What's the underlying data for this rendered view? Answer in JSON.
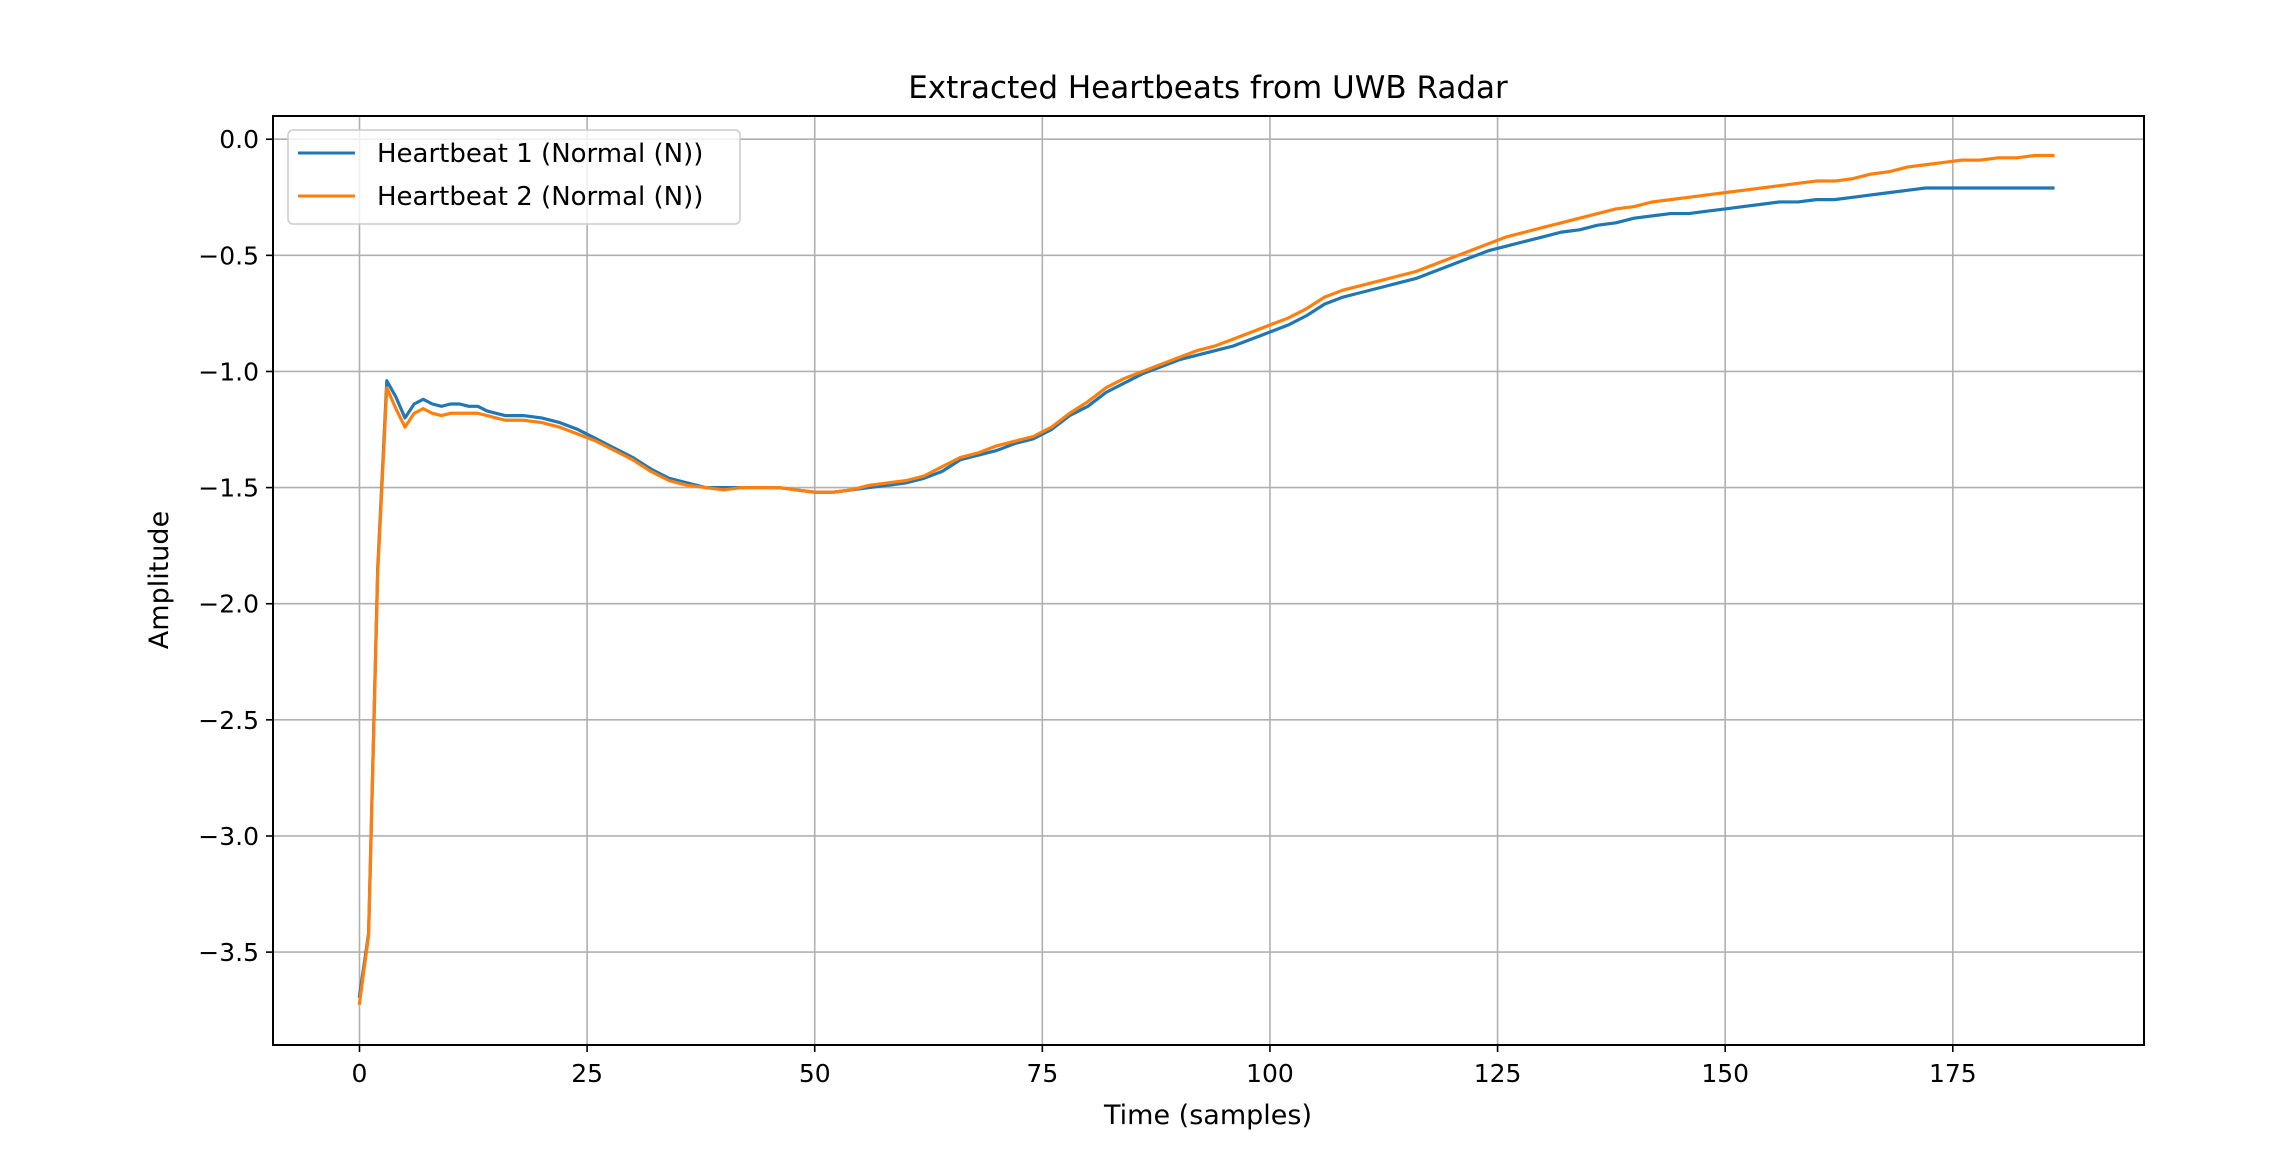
{
  "chart_data": {
    "type": "line",
    "title": "Extracted Heartbeats from UWB Radar",
    "xlabel": "Time (samples)",
    "ylabel": "Amplitude",
    "xlim": [
      -9.5,
      196
    ],
    "ylim": [
      -3.9,
      0.1
    ],
    "xticks": [
      0,
      25,
      50,
      75,
      100,
      125,
      150,
      175
    ],
    "xtick_labels": [
      "0",
      "25",
      "50",
      "75",
      "100",
      "125",
      "150",
      "175"
    ],
    "yticks": [
      0.0,
      -0.5,
      -1.0,
      -1.5,
      -2.0,
      -2.5,
      -3.0,
      -3.5
    ],
    "ytick_labels": [
      "0.0",
      "−0.5",
      "−1.0",
      "−1.5",
      "−2.0",
      "−2.5",
      "−3.0",
      "−3.5"
    ],
    "grid": true,
    "legend_position": "top-left",
    "series": [
      {
        "name": "Heartbeat 1 (Normal (N))",
        "color": "#1f77b4",
        "points": [
          [
            0,
            -3.69
          ],
          [
            1,
            -3.42
          ],
          [
            2,
            -1.85
          ],
          [
            3,
            -1.04
          ],
          [
            4,
            -1.11
          ],
          [
            5,
            -1.2
          ],
          [
            6,
            -1.14
          ],
          [
            7,
            -1.12
          ],
          [
            8,
            -1.14
          ],
          [
            9,
            -1.15
          ],
          [
            10,
            -1.14
          ],
          [
            11,
            -1.14
          ],
          [
            12,
            -1.15
          ],
          [
            13,
            -1.15
          ],
          [
            14,
            -1.17
          ],
          [
            15,
            -1.18
          ],
          [
            16,
            -1.19
          ],
          [
            18,
            -1.19
          ],
          [
            20,
            -1.2
          ],
          [
            22,
            -1.22
          ],
          [
            24,
            -1.25
          ],
          [
            26,
            -1.29
          ],
          [
            28,
            -1.33
          ],
          [
            30,
            -1.37
          ],
          [
            32,
            -1.42
          ],
          [
            34,
            -1.46
          ],
          [
            36,
            -1.48
          ],
          [
            38,
            -1.5
          ],
          [
            40,
            -1.5
          ],
          [
            42,
            -1.5
          ],
          [
            44,
            -1.5
          ],
          [
            46,
            -1.5
          ],
          [
            48,
            -1.51
          ],
          [
            50,
            -1.52
          ],
          [
            52,
            -1.52
          ],
          [
            54,
            -1.51
          ],
          [
            56,
            -1.5
          ],
          [
            58,
            -1.49
          ],
          [
            60,
            -1.48
          ],
          [
            62,
            -1.46
          ],
          [
            64,
            -1.43
          ],
          [
            66,
            -1.38
          ],
          [
            68,
            -1.36
          ],
          [
            70,
            -1.34
          ],
          [
            72,
            -1.31
          ],
          [
            74,
            -1.29
          ],
          [
            76,
            -1.25
          ],
          [
            78,
            -1.19
          ],
          [
            80,
            -1.15
          ],
          [
            82,
            -1.09
          ],
          [
            84,
            -1.05
          ],
          [
            86,
            -1.01
          ],
          [
            88,
            -0.98
          ],
          [
            90,
            -0.95
          ],
          [
            92,
            -0.93
          ],
          [
            94,
            -0.91
          ],
          [
            96,
            -0.89
          ],
          [
            98,
            -0.86
          ],
          [
            100,
            -0.83
          ],
          [
            102,
            -0.8
          ],
          [
            104,
            -0.76
          ],
          [
            106,
            -0.71
          ],
          [
            108,
            -0.68
          ],
          [
            110,
            -0.66
          ],
          [
            112,
            -0.64
          ],
          [
            114,
            -0.62
          ],
          [
            116,
            -0.6
          ],
          [
            118,
            -0.57
          ],
          [
            120,
            -0.54
          ],
          [
            122,
            -0.51
          ],
          [
            124,
            -0.48
          ],
          [
            126,
            -0.46
          ],
          [
            128,
            -0.44
          ],
          [
            130,
            -0.42
          ],
          [
            132,
            -0.4
          ],
          [
            134,
            -0.39
          ],
          [
            136,
            -0.37
          ],
          [
            138,
            -0.36
          ],
          [
            140,
            -0.34
          ],
          [
            142,
            -0.33
          ],
          [
            144,
            -0.32
          ],
          [
            146,
            -0.32
          ],
          [
            148,
            -0.31
          ],
          [
            150,
            -0.3
          ],
          [
            152,
            -0.29
          ],
          [
            154,
            -0.28
          ],
          [
            156,
            -0.27
          ],
          [
            158,
            -0.27
          ],
          [
            160,
            -0.26
          ],
          [
            162,
            -0.26
          ],
          [
            164,
            -0.25
          ],
          [
            166,
            -0.24
          ],
          [
            168,
            -0.23
          ],
          [
            170,
            -0.22
          ],
          [
            172,
            -0.21
          ],
          [
            174,
            -0.21
          ],
          [
            176,
            -0.21
          ],
          [
            178,
            -0.21
          ],
          [
            180,
            -0.21
          ],
          [
            182,
            -0.21
          ],
          [
            184,
            -0.21
          ],
          [
            186,
            -0.21
          ]
        ]
      },
      {
        "name": "Heartbeat 2 (Normal (N))",
        "color": "#ff7f0e",
        "points": [
          [
            0,
            -3.72
          ],
          [
            1,
            -3.43
          ],
          [
            2,
            -1.87
          ],
          [
            3,
            -1.07
          ],
          [
            4,
            -1.16
          ],
          [
            5,
            -1.24
          ],
          [
            6,
            -1.18
          ],
          [
            7,
            -1.16
          ],
          [
            8,
            -1.18
          ],
          [
            9,
            -1.19
          ],
          [
            10,
            -1.18
          ],
          [
            11,
            -1.18
          ],
          [
            12,
            -1.18
          ],
          [
            13,
            -1.18
          ],
          [
            14,
            -1.19
          ],
          [
            15,
            -1.2
          ],
          [
            16,
            -1.21
          ],
          [
            18,
            -1.21
          ],
          [
            20,
            -1.22
          ],
          [
            22,
            -1.24
          ],
          [
            24,
            -1.27
          ],
          [
            26,
            -1.3
          ],
          [
            28,
            -1.34
          ],
          [
            30,
            -1.38
          ],
          [
            32,
            -1.43
          ],
          [
            34,
            -1.47
          ],
          [
            36,
            -1.49
          ],
          [
            38,
            -1.5
          ],
          [
            40,
            -1.51
          ],
          [
            42,
            -1.5
          ],
          [
            44,
            -1.5
          ],
          [
            46,
            -1.5
          ],
          [
            48,
            -1.51
          ],
          [
            50,
            -1.52
          ],
          [
            52,
            -1.52
          ],
          [
            54,
            -1.51
          ],
          [
            56,
            -1.49
          ],
          [
            58,
            -1.48
          ],
          [
            60,
            -1.47
          ],
          [
            62,
            -1.45
          ],
          [
            64,
            -1.41
          ],
          [
            66,
            -1.37
          ],
          [
            68,
            -1.35
          ],
          [
            70,
            -1.32
          ],
          [
            72,
            -1.3
          ],
          [
            74,
            -1.28
          ],
          [
            76,
            -1.24
          ],
          [
            78,
            -1.18
          ],
          [
            80,
            -1.13
          ],
          [
            82,
            -1.07
          ],
          [
            84,
            -1.03
          ],
          [
            86,
            -1.0
          ],
          [
            88,
            -0.97
          ],
          [
            90,
            -0.94
          ],
          [
            92,
            -0.91
          ],
          [
            94,
            -0.89
          ],
          [
            96,
            -0.86
          ],
          [
            98,
            -0.83
          ],
          [
            100,
            -0.8
          ],
          [
            102,
            -0.77
          ],
          [
            104,
            -0.73
          ],
          [
            106,
            -0.68
          ],
          [
            108,
            -0.65
          ],
          [
            110,
            -0.63
          ],
          [
            112,
            -0.61
          ],
          [
            114,
            -0.59
          ],
          [
            116,
            -0.57
          ],
          [
            118,
            -0.54
          ],
          [
            120,
            -0.51
          ],
          [
            122,
            -0.48
          ],
          [
            124,
            -0.45
          ],
          [
            126,
            -0.42
          ],
          [
            128,
            -0.4
          ],
          [
            130,
            -0.38
          ],
          [
            132,
            -0.36
          ],
          [
            134,
            -0.34
          ],
          [
            136,
            -0.32
          ],
          [
            138,
            -0.3
          ],
          [
            140,
            -0.29
          ],
          [
            142,
            -0.27
          ],
          [
            144,
            -0.26
          ],
          [
            146,
            -0.25
          ],
          [
            148,
            -0.24
          ],
          [
            150,
            -0.23
          ],
          [
            152,
            -0.22
          ],
          [
            154,
            -0.21
          ],
          [
            156,
            -0.2
          ],
          [
            158,
            -0.19
          ],
          [
            160,
            -0.18
          ],
          [
            162,
            -0.18
          ],
          [
            164,
            -0.17
          ],
          [
            166,
            -0.15
          ],
          [
            168,
            -0.14
          ],
          [
            170,
            -0.12
          ],
          [
            172,
            -0.11
          ],
          [
            174,
            -0.1
          ],
          [
            176,
            -0.09
          ],
          [
            178,
            -0.09
          ],
          [
            180,
            -0.08
          ],
          [
            182,
            -0.08
          ],
          [
            184,
            -0.07
          ],
          [
            186,
            -0.07
          ]
        ]
      }
    ]
  }
}
